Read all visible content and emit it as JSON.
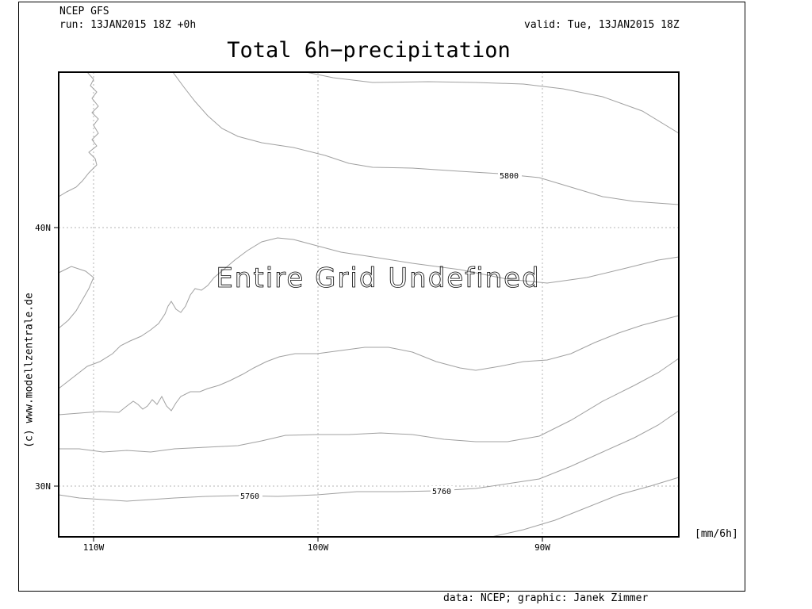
{
  "header": {
    "model": "NCEP GFS",
    "run": "run: 13JAN2015 18Z +0h",
    "valid": "valid: Tue, 13JAN2015 18Z"
  },
  "title": "Total 6h−precipitation",
  "message": "Entire Grid Undefined",
  "units": "[mm/6h]",
  "credit_side": "(c)  www.modellzentrale.de",
  "credit_bottom": "data: NCEP; graphic: Janek Zimmer",
  "axes": {
    "x_ticks": [
      "110W",
      "100W",
      "90W"
    ],
    "y_ticks": [
      "40N",
      "30N"
    ]
  },
  "contour_labels": [
    "5800",
    "5760",
    "5760"
  ],
  "colors": {
    "contour": "#a0a0a0",
    "grid": "#b4b4b4",
    "frame": "#000000"
  }
}
